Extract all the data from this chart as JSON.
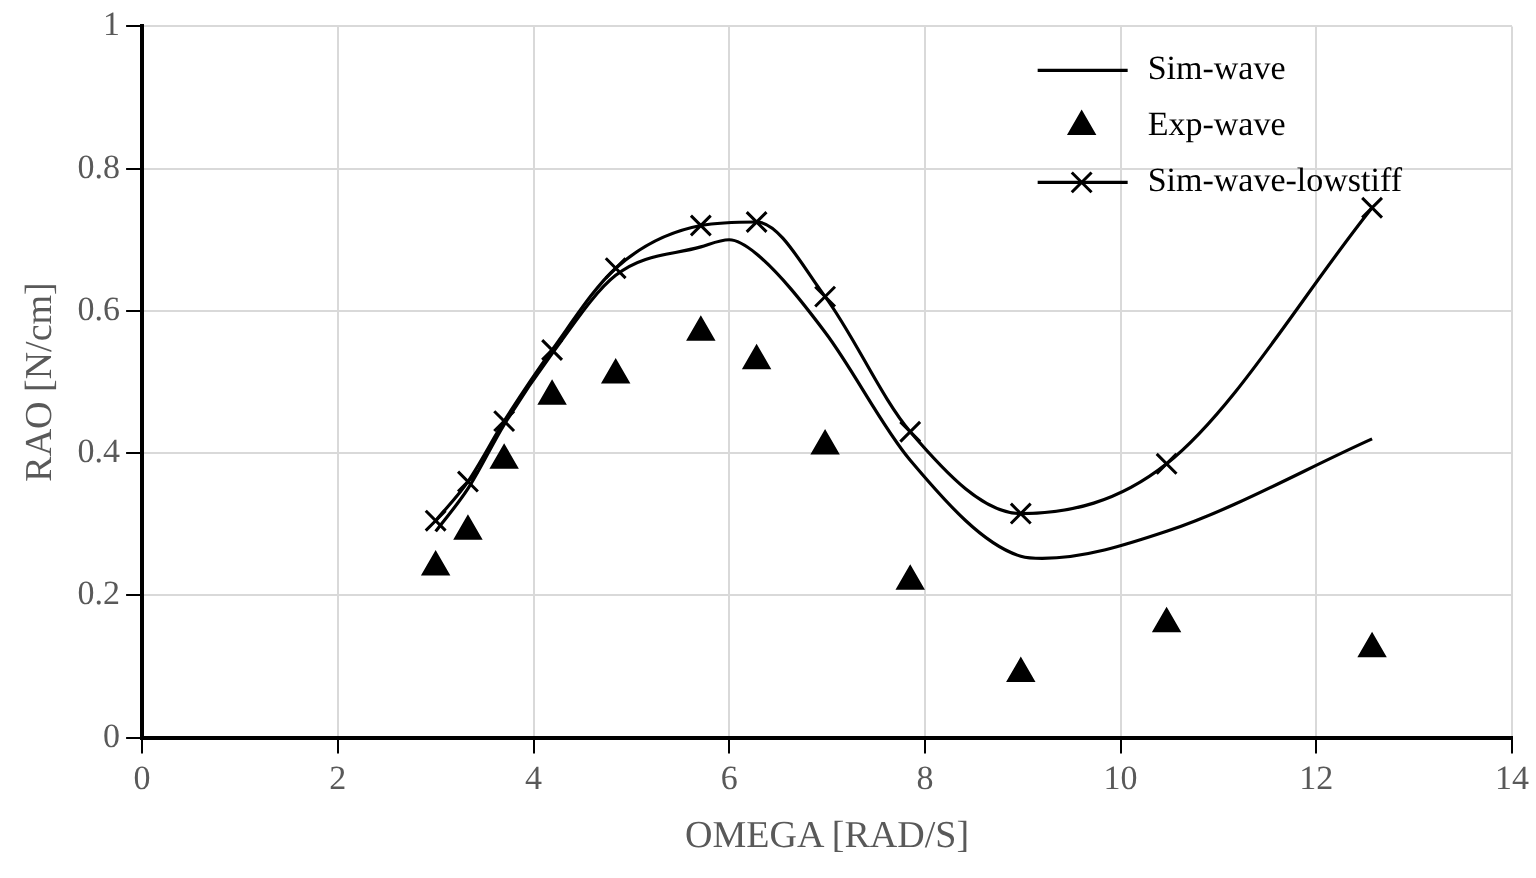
{
  "chart_data": {
    "type": "line",
    "xlabel": "OMEGA [RAD/S]",
    "ylabel": "RAO [N/cm]",
    "xlim": [
      0,
      14
    ],
    "xticks": [
      0,
      2,
      4,
      6,
      8,
      10,
      12,
      14
    ],
    "ylim": [
      0,
      1
    ],
    "yticks": [
      0,
      0.2,
      0.4,
      0.6,
      0.8,
      1
    ],
    "grid": true,
    "legend": "top right",
    "series": [
      {
        "name": "Sim-wave",
        "marker": "none",
        "color": "#000000",
        "x": [
          3.0,
          3.33,
          3.7,
          4.19,
          4.84,
          5.71,
          6.0,
          6.28,
          6.98,
          7.85,
          8.98,
          9.2,
          10.47,
          12.57
        ],
        "values": [
          0.29,
          0.35,
          0.44,
          0.54,
          0.65,
          0.69,
          0.7,
          0.68,
          0.57,
          0.39,
          0.255,
          0.252,
          0.29,
          0.42
        ]
      },
      {
        "name": "Exp-wave",
        "type": "scatter",
        "marker": "triangle",
        "color": "#000000",
        "x": [
          3.0,
          3.33,
          3.7,
          4.19,
          4.84,
          5.71,
          6.28,
          6.98,
          7.85,
          8.98,
          10.47,
          12.57
        ],
        "values": [
          0.24,
          0.29,
          0.39,
          0.48,
          0.51,
          0.57,
          0.53,
          0.41,
          0.22,
          0.09,
          0.16,
          0.125
        ]
      },
      {
        "name": "Sim-wave-lowstiff",
        "marker": "cross",
        "color": "#000000",
        "x": [
          3.0,
          3.33,
          3.7,
          4.19,
          4.84,
          5.71,
          6.28,
          6.98,
          7.85,
          8.98,
          10.47,
          12.57
        ],
        "values": [
          0.305,
          0.36,
          0.445,
          0.545,
          0.66,
          0.72,
          0.725,
          0.62,
          0.43,
          0.315,
          0.385,
          0.745
        ]
      }
    ]
  }
}
